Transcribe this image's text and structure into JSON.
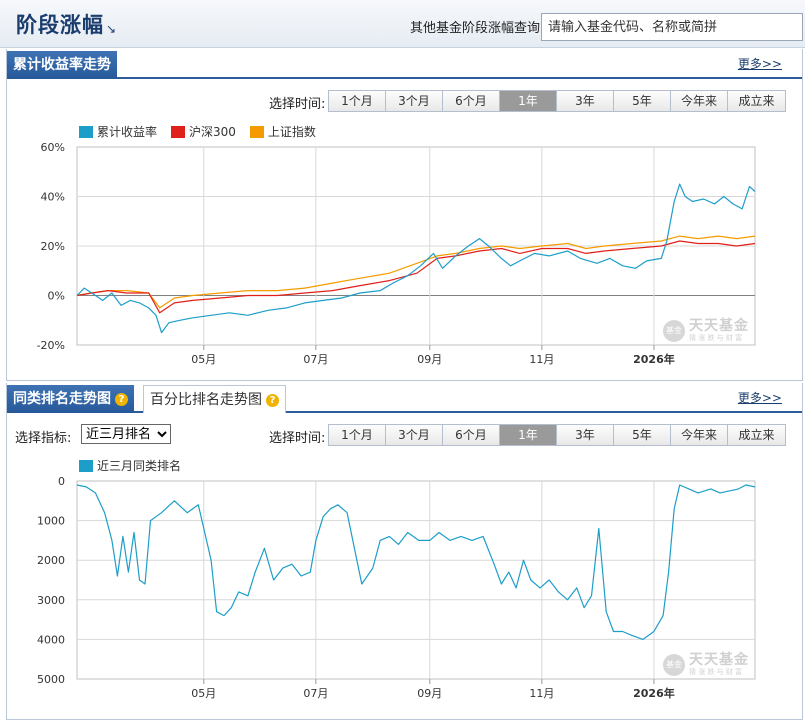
{
  "header": {
    "title": "阶段涨幅",
    "title_arrow": "↘",
    "query_label": "其他基金阶段涨幅查询:",
    "query_placeholder": "请输入基金代码、名称或简拼"
  },
  "section1": {
    "tab_label": "累计收益率走势",
    "more_label": "更多>>",
    "time_label": "选择时间:",
    "time_buttons": [
      "1个月",
      "3个月",
      "6个月",
      "1年",
      "3年",
      "5年",
      "今年来",
      "成立来"
    ],
    "active_button": "1年"
  },
  "section2": {
    "tab_active": "同类排名走势图",
    "tab_inactive": "百分比排名走势图",
    "help_glyph": "?",
    "more_label": "更多>>",
    "metric_label": "选择指标:",
    "metric_selected": "近三月排名",
    "time_label": "选择时间:",
    "time_buttons": [
      "1个月",
      "3个月",
      "6个月",
      "1年",
      "3年",
      "5年",
      "今年来",
      "成立来"
    ],
    "active_button": "1年"
  },
  "watermark": {
    "logo_text": "基金",
    "main": "天天基金",
    "sub": "猜 涨 跌 与 财 富"
  },
  "colors": {
    "fund": "#1d9ec9",
    "hs300": "#e0201a",
    "sh_index": "#f59b00",
    "accent": "#2b5d9a"
  },
  "chart_data": [
    {
      "type": "line",
      "title": "",
      "y_unit": "%",
      "ylim": [
        -20,
        60
      ],
      "yticks": [
        -20,
        0,
        20,
        40,
        60
      ],
      "ytick_labels": [
        "-20%",
        "0%",
        "20%",
        "40%",
        "60%"
      ],
      "xlim": [
        "2025-02-21",
        "2026-02-25"
      ],
      "xticks": [
        {
          "date": "2025-05-01",
          "label": "05月",
          "bold": false
        },
        {
          "date": "2025-07-01",
          "label": "07月",
          "bold": false
        },
        {
          "date": "2025-09-01",
          "label": "09月",
          "bold": false
        },
        {
          "date": "2025-11-01",
          "label": "11月",
          "bold": false
        },
        {
          "date": "2026-01-01",
          "label": "2026年",
          "bold": true
        }
      ],
      "grid": true,
      "legend_position": "top-left",
      "series": [
        {
          "name": "累计收益率",
          "color_key": "fund",
          "points": [
            [
              "2025-02-21",
              0
            ],
            [
              "2025-02-25",
              3
            ],
            [
              "2025-03-01",
              1
            ],
            [
              "2025-03-07",
              -2
            ],
            [
              "2025-03-12",
              1
            ],
            [
              "2025-03-17",
              -4
            ],
            [
              "2025-03-22",
              -2
            ],
            [
              "2025-03-27",
              -3
            ],
            [
              "2025-04-01",
              -5
            ],
            [
              "2025-04-05",
              -8
            ],
            [
              "2025-04-08",
              -15
            ],
            [
              "2025-04-12",
              -11
            ],
            [
              "2025-04-18",
              -10
            ],
            [
              "2025-04-25",
              -9
            ],
            [
              "2025-05-05",
              -8
            ],
            [
              "2025-05-15",
              -7
            ],
            [
              "2025-05-25",
              -8
            ],
            [
              "2025-06-05",
              -6
            ],
            [
              "2025-06-15",
              -5
            ],
            [
              "2025-06-25",
              -3
            ],
            [
              "2025-07-05",
              -2
            ],
            [
              "2025-07-15",
              -1
            ],
            [
              "2025-07-25",
              1
            ],
            [
              "2025-08-05",
              2
            ],
            [
              "2025-08-12",
              5
            ],
            [
              "2025-08-20",
              8
            ],
            [
              "2025-08-27",
              12
            ],
            [
              "2025-09-03",
              17
            ],
            [
              "2025-09-08",
              11
            ],
            [
              "2025-09-15",
              16
            ],
            [
              "2025-09-22",
              20
            ],
            [
              "2025-09-28",
              23
            ],
            [
              "2025-10-03",
              20
            ],
            [
              "2025-10-10",
              15
            ],
            [
              "2025-10-15",
              12
            ],
            [
              "2025-10-20",
              14
            ],
            [
              "2025-10-28",
              17
            ],
            [
              "2025-11-05",
              16
            ],
            [
              "2025-11-15",
              18
            ],
            [
              "2025-11-22",
              15
            ],
            [
              "2025-12-01",
              13
            ],
            [
              "2025-12-08",
              15
            ],
            [
              "2025-12-15",
              12
            ],
            [
              "2025-12-22",
              11
            ],
            [
              "2025-12-28",
              14
            ],
            [
              "2026-01-05",
              15
            ],
            [
              "2026-01-08",
              22
            ],
            [
              "2026-01-12",
              38
            ],
            [
              "2026-01-15",
              45
            ],
            [
              "2026-01-18",
              40
            ],
            [
              "2026-01-22",
              38
            ],
            [
              "2026-01-28",
              39
            ],
            [
              "2026-02-03",
              37
            ],
            [
              "2026-02-08",
              40
            ],
            [
              "2026-02-13",
              37
            ],
            [
              "2026-02-18",
              35
            ],
            [
              "2026-02-22",
              44
            ],
            [
              "2026-02-25",
              42
            ]
          ]
        },
        {
          "name": "沪深300",
          "color_key": "hs300",
          "points": [
            [
              "2025-02-21",
              0
            ],
            [
              "2025-03-01",
              1
            ],
            [
              "2025-03-10",
              2
            ],
            [
              "2025-03-20",
              1
            ],
            [
              "2025-04-01",
              1
            ],
            [
              "2025-04-07",
              -7
            ],
            [
              "2025-04-15",
              -3
            ],
            [
              "2025-04-25",
              -2
            ],
            [
              "2025-05-10",
              -1
            ],
            [
              "2025-05-25",
              0
            ],
            [
              "2025-06-10",
              0
            ],
            [
              "2025-06-25",
              1
            ],
            [
              "2025-07-10",
              2
            ],
            [
              "2025-07-25",
              4
            ],
            [
              "2025-08-10",
              6
            ],
            [
              "2025-08-25",
              9
            ],
            [
              "2025-09-05",
              15
            ],
            [
              "2025-09-15",
              16
            ],
            [
              "2025-09-28",
              18
            ],
            [
              "2025-10-10",
              19
            ],
            [
              "2025-10-20",
              17
            ],
            [
              "2025-11-01",
              19
            ],
            [
              "2025-11-15",
              19
            ],
            [
              "2025-11-25",
              17
            ],
            [
              "2025-12-05",
              18
            ],
            [
              "2025-12-20",
              19
            ],
            [
              "2026-01-05",
              20
            ],
            [
              "2026-01-15",
              22
            ],
            [
              "2026-01-25",
              21
            ],
            [
              "2026-02-05",
              21
            ],
            [
              "2026-02-15",
              20
            ],
            [
              "2026-02-25",
              21
            ]
          ]
        },
        {
          "name": "上证指数",
          "color_key": "sh_index",
          "points": [
            [
              "2025-02-21",
              0
            ],
            [
              "2025-03-01",
              1
            ],
            [
              "2025-03-10",
              2
            ],
            [
              "2025-03-20",
              2
            ],
            [
              "2025-04-01",
              1
            ],
            [
              "2025-04-07",
              -5
            ],
            [
              "2025-04-15",
              -1
            ],
            [
              "2025-04-25",
              0
            ],
            [
              "2025-05-10",
              1
            ],
            [
              "2025-05-25",
              2
            ],
            [
              "2025-06-10",
              2
            ],
            [
              "2025-06-25",
              3
            ],
            [
              "2025-07-10",
              5
            ],
            [
              "2025-07-25",
              7
            ],
            [
              "2025-08-10",
              9
            ],
            [
              "2025-08-25",
              13
            ],
            [
              "2025-09-05",
              16
            ],
            [
              "2025-09-15",
              17
            ],
            [
              "2025-09-28",
              19
            ],
            [
              "2025-10-10",
              20
            ],
            [
              "2025-10-20",
              19
            ],
            [
              "2025-11-01",
              20
            ],
            [
              "2025-11-15",
              21
            ],
            [
              "2025-11-25",
              19
            ],
            [
              "2025-12-05",
              20
            ],
            [
              "2025-12-20",
              21
            ],
            [
              "2026-01-05",
              22
            ],
            [
              "2026-01-15",
              24
            ],
            [
              "2026-01-25",
              23
            ],
            [
              "2026-02-05",
              24
            ],
            [
              "2026-02-15",
              23
            ],
            [
              "2026-02-25",
              24
            ]
          ]
        }
      ]
    },
    {
      "type": "line",
      "title": "",
      "y_inverted": true,
      "ylim": [
        0,
        5000
      ],
      "yticks": [
        0,
        1000,
        2000,
        3000,
        4000,
        5000
      ],
      "ytick_labels": [
        "0",
        "1000",
        "2000",
        "3000",
        "4000",
        "5000"
      ],
      "xlim": [
        "2025-02-21",
        "2026-02-25"
      ],
      "xticks": [
        {
          "date": "2025-05-01",
          "label": "05月",
          "bold": false
        },
        {
          "date": "2025-07-01",
          "label": "07月",
          "bold": false
        },
        {
          "date": "2025-09-01",
          "label": "09月",
          "bold": false
        },
        {
          "date": "2025-11-01",
          "label": "11月",
          "bold": false
        },
        {
          "date": "2026-01-01",
          "label": "2026年",
          "bold": true
        }
      ],
      "grid": true,
      "legend_position": "top-left",
      "series": [
        {
          "name": "近三月同类排名",
          "color_key": "fund",
          "points": [
            [
              "2025-02-21",
              100
            ],
            [
              "2025-02-26",
              150
            ],
            [
              "2025-03-03",
              300
            ],
            [
              "2025-03-08",
              800
            ],
            [
              "2025-03-12",
              1500
            ],
            [
              "2025-03-15",
              2400
            ],
            [
              "2025-03-18",
              1400
            ],
            [
              "2025-03-21",
              2300
            ],
            [
              "2025-03-24",
              1300
            ],
            [
              "2025-03-27",
              2500
            ],
            [
              "2025-03-30",
              2600
            ],
            [
              "2025-04-02",
              1000
            ],
            [
              "2025-04-08",
              800
            ],
            [
              "2025-04-15",
              500
            ],
            [
              "2025-04-22",
              800
            ],
            [
              "2025-04-28",
              600
            ],
            [
              "2025-05-01",
              1200
            ],
            [
              "2025-05-05",
              2000
            ],
            [
              "2025-05-08",
              3300
            ],
            [
              "2025-05-12",
              3400
            ],
            [
              "2025-05-16",
              3200
            ],
            [
              "2025-05-20",
              2800
            ],
            [
              "2025-05-25",
              2900
            ],
            [
              "2025-05-29",
              2300
            ],
            [
              "2025-06-03",
              1700
            ],
            [
              "2025-06-08",
              2500
            ],
            [
              "2025-06-13",
              2200
            ],
            [
              "2025-06-18",
              2100
            ],
            [
              "2025-06-23",
              2400
            ],
            [
              "2025-06-28",
              2300
            ],
            [
              "2025-07-01",
              1500
            ],
            [
              "2025-07-05",
              900
            ],
            [
              "2025-07-09",
              700
            ],
            [
              "2025-07-13",
              600
            ],
            [
              "2025-07-18",
              800
            ],
            [
              "2025-07-22",
              1700
            ],
            [
              "2025-07-26",
              2600
            ],
            [
              "2025-08-01",
              2200
            ],
            [
              "2025-08-05",
              1500
            ],
            [
              "2025-08-10",
              1400
            ],
            [
              "2025-08-15",
              1600
            ],
            [
              "2025-08-20",
              1300
            ],
            [
              "2025-08-26",
              1500
            ],
            [
              "2025-09-01",
              1500
            ],
            [
              "2025-09-06",
              1300
            ],
            [
              "2025-09-12",
              1500
            ],
            [
              "2025-09-18",
              1400
            ],
            [
              "2025-09-24",
              1500
            ],
            [
              "2025-09-30",
              1400
            ],
            [
              "2025-10-06",
              2100
            ],
            [
              "2025-10-10",
              2600
            ],
            [
              "2025-10-14",
              2300
            ],
            [
              "2025-10-18",
              2700
            ],
            [
              "2025-10-22",
              2000
            ],
            [
              "2025-10-26",
              2500
            ],
            [
              "2025-10-31",
              2700
            ],
            [
              "2025-11-05",
              2500
            ],
            [
              "2025-11-10",
              2800
            ],
            [
              "2025-11-15",
              3000
            ],
            [
              "2025-11-20",
              2700
            ],
            [
              "2025-11-24",
              3200
            ],
            [
              "2025-11-28",
              2900
            ],
            [
              "2025-12-02",
              1200
            ],
            [
              "2025-12-06",
              3300
            ],
            [
              "2025-12-10",
              3800
            ],
            [
              "2025-12-15",
              3800
            ],
            [
              "2025-12-20",
              3900
            ],
            [
              "2025-12-26",
              4000
            ],
            [
              "2026-01-01",
              3800
            ],
            [
              "2026-01-06",
              3400
            ],
            [
              "2026-01-09",
              2300
            ],
            [
              "2026-01-12",
              700
            ],
            [
              "2026-01-15",
              100
            ],
            [
              "2026-01-20",
              200
            ],
            [
              "2026-01-25",
              300
            ],
            [
              "2026-02-01",
              200
            ],
            [
              "2026-02-06",
              300
            ],
            [
              "2026-02-11",
              250
            ],
            [
              "2026-02-16",
              200
            ],
            [
              "2026-02-20",
              100
            ],
            [
              "2026-02-25",
              150
            ]
          ]
        }
      ]
    }
  ]
}
